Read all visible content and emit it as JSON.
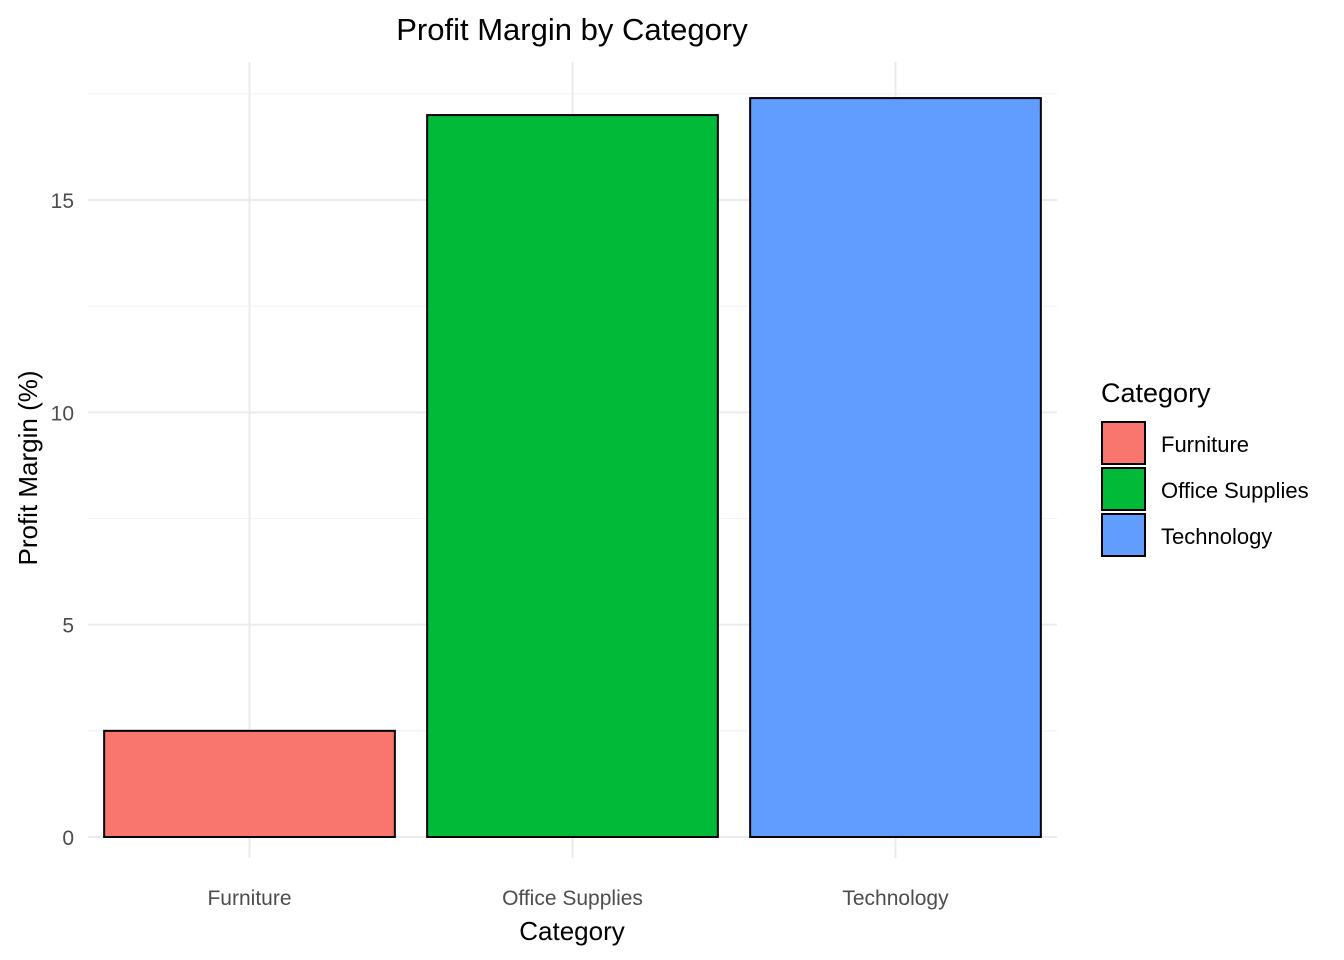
{
  "chart_data": {
    "type": "bar",
    "title": "Profit Margin by Category",
    "xlabel": "Category",
    "ylabel": "Profit Margin (%)",
    "categories": [
      "Furniture",
      "Office Supplies",
      "Technology"
    ],
    "values": [
      2.5,
      17.0,
      17.4
    ],
    "colors": [
      "#F8766D",
      "#00BA38",
      "#619CFF"
    ],
    "bar_outline": "#000000",
    "ylim": [
      0,
      18
    ],
    "yticks": [
      0,
      5,
      10,
      15
    ],
    "grid": true,
    "legend": {
      "title": "Category",
      "position": "right",
      "items": [
        "Furniture",
        "Office Supplies",
        "Technology"
      ]
    }
  }
}
